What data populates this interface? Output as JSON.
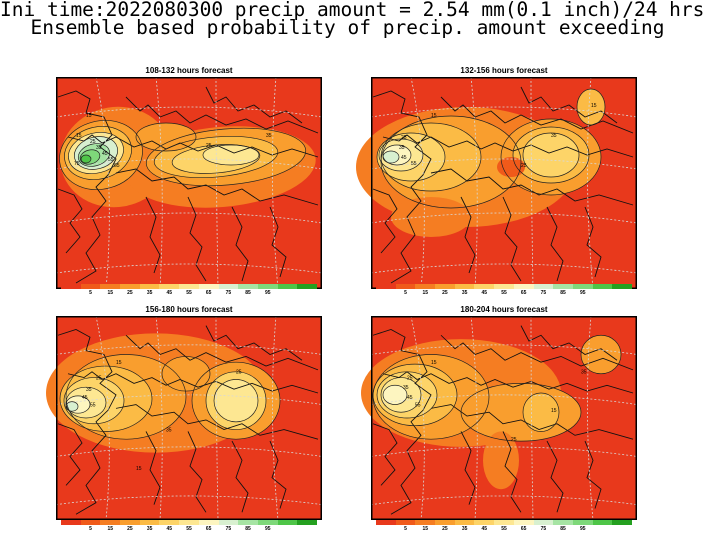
{
  "title_line1": "Ini time:2022080300 precip amount = 2.54 mm(0.1 inch)/24 hrs",
  "title_line2": "Ensemble based probability of precip. amount exceeding",
  "colors": [
    "#e8391c",
    "#f05a1a",
    "#f57d22",
    "#f99e2e",
    "#fbbb45",
    "#fdd468",
    "#fde792",
    "#fdf5c0",
    "#d8f0d0",
    "#a6e4a4",
    "#7ed87a",
    "#4ec548",
    "#24a020"
  ],
  "colorbar_labels": [
    "5",
    "15",
    "25",
    "35",
    "45",
    "55",
    "65",
    "75",
    "85",
    "95"
  ],
  "panels": [
    {
      "title": "108-132 hours forecast",
      "contour_labels": [
        "15",
        "15",
        "25",
        "35",
        "45",
        "55",
        "65",
        "75",
        "25",
        "35"
      ]
    },
    {
      "title": "132-156 hours forecast",
      "contour_labels": [
        "15",
        "25",
        "35",
        "45",
        "55",
        "25",
        "15",
        "35"
      ]
    },
    {
      "title": "156-180 hours forecast",
      "contour_labels": [
        "15",
        "25",
        "35",
        "45",
        "55",
        "25",
        "35",
        "15"
      ]
    },
    {
      "title": "180-204 hours forecast",
      "contour_labels": [
        "15",
        "25",
        "35",
        "45",
        "55",
        "15",
        "25",
        "35"
      ]
    }
  ]
}
